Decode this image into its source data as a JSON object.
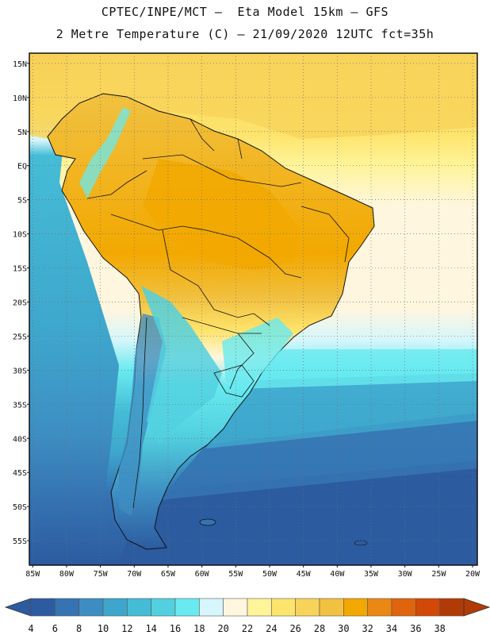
{
  "title_line1": "CPTEC/INPE/MCT –  Eta Model 15km – GFS",
  "title_line2": "2 Metre Temperature (C) – 21/09/2020 12UTC fct=35h",
  "lat_labels": [
    "15N",
    "10N",
    "5N",
    "EQ",
    "5S",
    "10S",
    "15S",
    "20S",
    "25S",
    "30S",
    "35S",
    "40S",
    "45S",
    "50S",
    "55S"
  ],
  "lon_labels": [
    "85W",
    "80W",
    "75W",
    "70W",
    "65W",
    "60W",
    "55W",
    "50W",
    "45W",
    "40W",
    "35W",
    "30W",
    "25W",
    "20W"
  ],
  "colorbar": {
    "labels": [
      "4",
      "6",
      "8",
      "10",
      "12",
      "14",
      "16",
      "18",
      "20",
      "22",
      "24",
      "26",
      "28",
      "30",
      "32",
      "34",
      "36",
      "38"
    ],
    "colors": [
      "#2c5ba0",
      "#3573b2",
      "#3d8dc2",
      "#3ea6cc",
      "#45bcd6",
      "#52d0df",
      "#68eaf0",
      "#d6f6fb",
      "#fff6df",
      "#fff49a",
      "#fde46c",
      "#f8d35a",
      "#f1c141",
      "#f2a800",
      "#ea8815",
      "#e0640d",
      "#d24807",
      "#b13b06"
    ]
  },
  "map": {
    "ocean_colors": {
      "deep": "#2c5ba0",
      "mid": "#3d8dc2",
      "shelf": "#45bcd6",
      "warm_ocean": "#fde46c",
      "tropical": "#f8d35a"
    },
    "land_colors": {
      "hot": "#f1c141",
      "very_hot": "#f2a800",
      "cool": "#68eaf0",
      "cold": "#3573b2",
      "mild": "#fff6df"
    }
  }
}
